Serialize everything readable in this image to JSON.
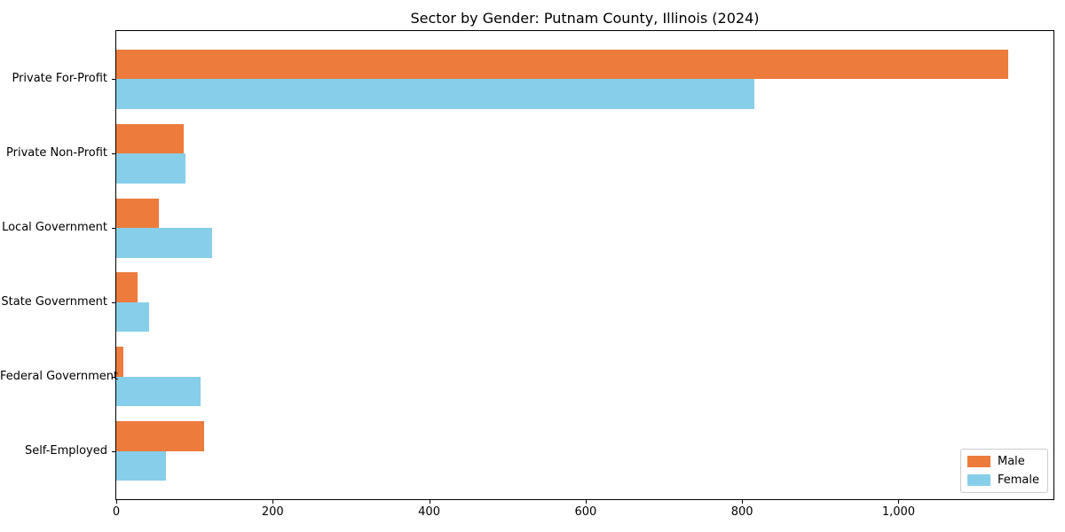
{
  "title": "Sector by Gender: Putnam County, Illinois (2024)",
  "chart_data": {
    "type": "bar",
    "orientation": "horizontal",
    "title": "Sector by Gender: Putnam County, Illinois (2024)",
    "categories": [
      "Private For-Profit",
      "Private Non-Profit",
      "Local Government",
      "State Government",
      "Federal Government",
      "Self-Employed"
    ],
    "series": [
      {
        "name": "Male",
        "color": "#EC7B3C",
        "values": [
          1140,
          86,
          54,
          27,
          9,
          112
        ]
      },
      {
        "name": "Female",
        "color": "#87CEEB",
        "values": [
          816,
          88,
          123,
          42,
          108,
          63
        ]
      }
    ],
    "xlabel": "",
    "ylabel": "",
    "xlim": [
      0,
      1198
    ],
    "xticks": [
      0,
      200,
      400,
      600,
      800,
      1000
    ],
    "xtick_labels": [
      "0",
      "200",
      "400",
      "600",
      "800",
      "1,000"
    ],
    "legend_position": "lower right",
    "grid": false,
    "bar_height_units": 0.4,
    "ylim": [
      -0.65,
      5.65
    ]
  }
}
